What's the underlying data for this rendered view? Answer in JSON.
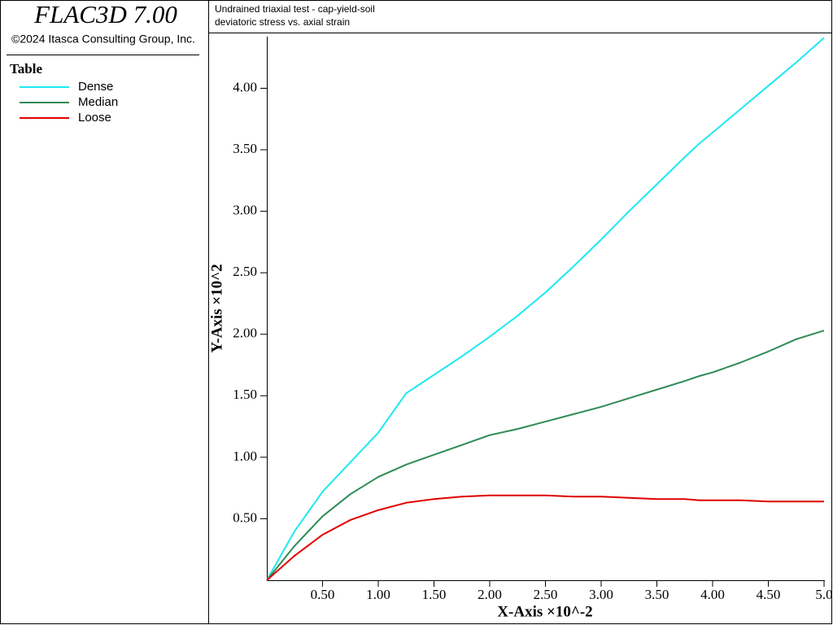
{
  "header": {
    "brand": "FLAC3D 7.00",
    "copyright": "©2024 Itasca Consulting Group, Inc."
  },
  "chart_data": {
    "type": "line",
    "title": "Undrained triaxial test - cap-yield-soil",
    "subtitle": "deviatoric stress vs. axial strain",
    "legend_title": "Table",
    "x_label": "X-Axis ×10^-2",
    "y_label": "Y-Axis ×10^2",
    "x": [
      0,
      0.25,
      0.5,
      0.75,
      1.0,
      1.25,
      1.5,
      1.75,
      2.0,
      2.25,
      2.5,
      2.75,
      3.0,
      3.25,
      3.5,
      3.75,
      3.88,
      4.0,
      4.25,
      4.5,
      4.75,
      5.0
    ],
    "series": [
      {
        "name": "Dense",
        "color": "#1ee8f2",
        "values": [
          0,
          0.4,
          0.72,
          0.96,
          1.2,
          1.52,
          1.67,
          1.82,
          1.98,
          2.15,
          2.34,
          2.55,
          2.77,
          3.0,
          3.22,
          3.44,
          3.55,
          3.64,
          3.83,
          4.02,
          4.21,
          4.41
        ]
      },
      {
        "name": "Median",
        "color": "#2e8b57",
        "values": [
          0,
          0.28,
          0.52,
          0.7,
          0.84,
          0.94,
          1.02,
          1.1,
          1.18,
          1.23,
          1.29,
          1.35,
          1.41,
          1.48,
          1.55,
          1.62,
          1.66,
          1.69,
          1.77,
          1.86,
          1.96,
          2.03
        ]
      },
      {
        "name": "Loose",
        "color": "#e00000",
        "values": [
          0,
          0.2,
          0.37,
          0.49,
          0.57,
          0.63,
          0.66,
          0.68,
          0.69,
          0.69,
          0.69,
          0.68,
          0.68,
          0.67,
          0.66,
          0.66,
          0.65,
          0.65,
          0.65,
          0.64,
          0.64,
          0.64
        ]
      }
    ],
    "xlim": [
      0,
      5
    ],
    "ylim": [
      0,
      4.42
    ],
    "xticks": [
      {
        "value": 0.5,
        "label": "0.50"
      },
      {
        "value": 1,
        "label": "1.00"
      },
      {
        "value": 1.5,
        "label": "1.50"
      },
      {
        "value": 2,
        "label": "2.00"
      },
      {
        "value": 2.5,
        "label": "2.50"
      },
      {
        "value": 3,
        "label": "3.00"
      },
      {
        "value": 3.5,
        "label": "3.50"
      },
      {
        "value": 4,
        "label": "4.00"
      },
      {
        "value": 4.5,
        "label": "4.50"
      },
      {
        "value": 5,
        "label": "5.0"
      }
    ],
    "yticks": [
      {
        "value": 0.5,
        "label": "0.50"
      },
      {
        "value": 1,
        "label": "1.00"
      },
      {
        "value": 1.5,
        "label": "1.50"
      },
      {
        "value": 2,
        "label": "2.00"
      },
      {
        "value": 2.5,
        "label": "2.50"
      },
      {
        "value": 3,
        "label": "3.00"
      },
      {
        "value": 3.5,
        "label": "3.50"
      },
      {
        "value": 4,
        "label": "4.00"
      }
    ],
    "grid": false
  }
}
